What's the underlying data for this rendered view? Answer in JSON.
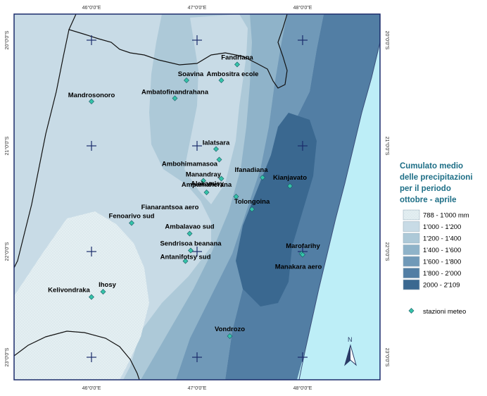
{
  "coordinates": {
    "longitudes": [
      "46°0'0\"E",
      "47°0'0\"E",
      "48°0'0\"E"
    ],
    "latitudes": [
      "20°0'0\"S",
      "21°0'0\"S",
      "22°0'0\"S",
      "23°0'0\"S"
    ]
  },
  "stations": [
    {
      "name": "Fandriana",
      "lon": 47.38,
      "lat": 20.23
    },
    {
      "name": "Soavina",
      "lon": 46.9,
      "lat": 20.38
    },
    {
      "name": "Ambositra ecole",
      "lon": 47.23,
      "lat": 20.38
    },
    {
      "name": "Ambatofinandrahana",
      "lon": 46.79,
      "lat": 20.55
    },
    {
      "name": "Mandrosonoro",
      "lon": 46.0,
      "lat": 20.58
    },
    {
      "name": "Ialatsara",
      "lon": 47.18,
      "lat": 21.03
    },
    {
      "name": "Ambohimamasoa",
      "lon": 47.21,
      "lat": 21.13
    },
    {
      "name": "Ifanadiana",
      "lon": 47.62,
      "lat": 21.3
    },
    {
      "name": "Manandray",
      "lon": 47.06,
      "lat": 21.33
    },
    {
      "name": "Kianjavato",
      "lon": 47.88,
      "lat": 21.38
    },
    {
      "name": "Alakamisy",
      "lon": 47.23,
      "lat": 21.31
    },
    {
      "name": "Ampamaherana",
      "lon": 47.09,
      "lat": 21.44
    },
    {
      "name": "Fianarantsoa aero",
      "lon": 47.37,
      "lat": 21.48
    },
    {
      "name": "Tolongoina",
      "lon": 47.52,
      "lat": 21.6
    },
    {
      "name": "Fenoarivo sud",
      "lon": 46.38,
      "lat": 21.73
    },
    {
      "name": "Ambalavao sud",
      "lon": 46.93,
      "lat": 21.83
    },
    {
      "name": "Sendrisoa beanana",
      "lon": 46.94,
      "lat": 21.99
    },
    {
      "name": "Marofarihy",
      "lon": 47.99,
      "lat": 22.02
    },
    {
      "name": "Antanifotsy sud",
      "lon": 46.89,
      "lat": 22.09
    },
    {
      "name": "Manakara aero",
      "lon": 48.0,
      "lat": 22.03
    },
    {
      "name": "Ihosy",
      "lon": 46.11,
      "lat": 22.38
    },
    {
      "name": "Kelivondraka",
      "lon": 46.0,
      "lat": 22.43
    },
    {
      "name": "Vondrozo",
      "lon": 47.31,
      "lat": 22.8
    }
  ],
  "legend": {
    "title_lines": [
      "Cumulato medio",
      "delle precipitazioni",
      "per il periodo",
      "ottobre - aprile"
    ],
    "classes": [
      {
        "label": "788 - 1'000 mm",
        "color": "#e4eff2"
      },
      {
        "label": "1'000 - 1'200",
        "color": "#c8dbe6"
      },
      {
        "label": "1'200 - 1'400",
        "color": "#adc9d8"
      },
      {
        "label": "1'400 - 1'600",
        "color": "#8fb3c9"
      },
      {
        "label": "1'600 - 1'800",
        "color": "#7099b8"
      },
      {
        "label": "1'800 - 2'000",
        "color": "#527ea4"
      },
      {
        "label": "2000 - 2'109",
        "color": "#3a6890"
      }
    ],
    "station_symbol_label": "stazioni meteo",
    "station_color": "#35c3a8"
  },
  "north_arrow_label": "N",
  "colors": {
    "ocean": "#bdeef7",
    "frame": "#1b2c6b",
    "grid_cross": "#1b2c6b",
    "boundary": "#111111"
  }
}
